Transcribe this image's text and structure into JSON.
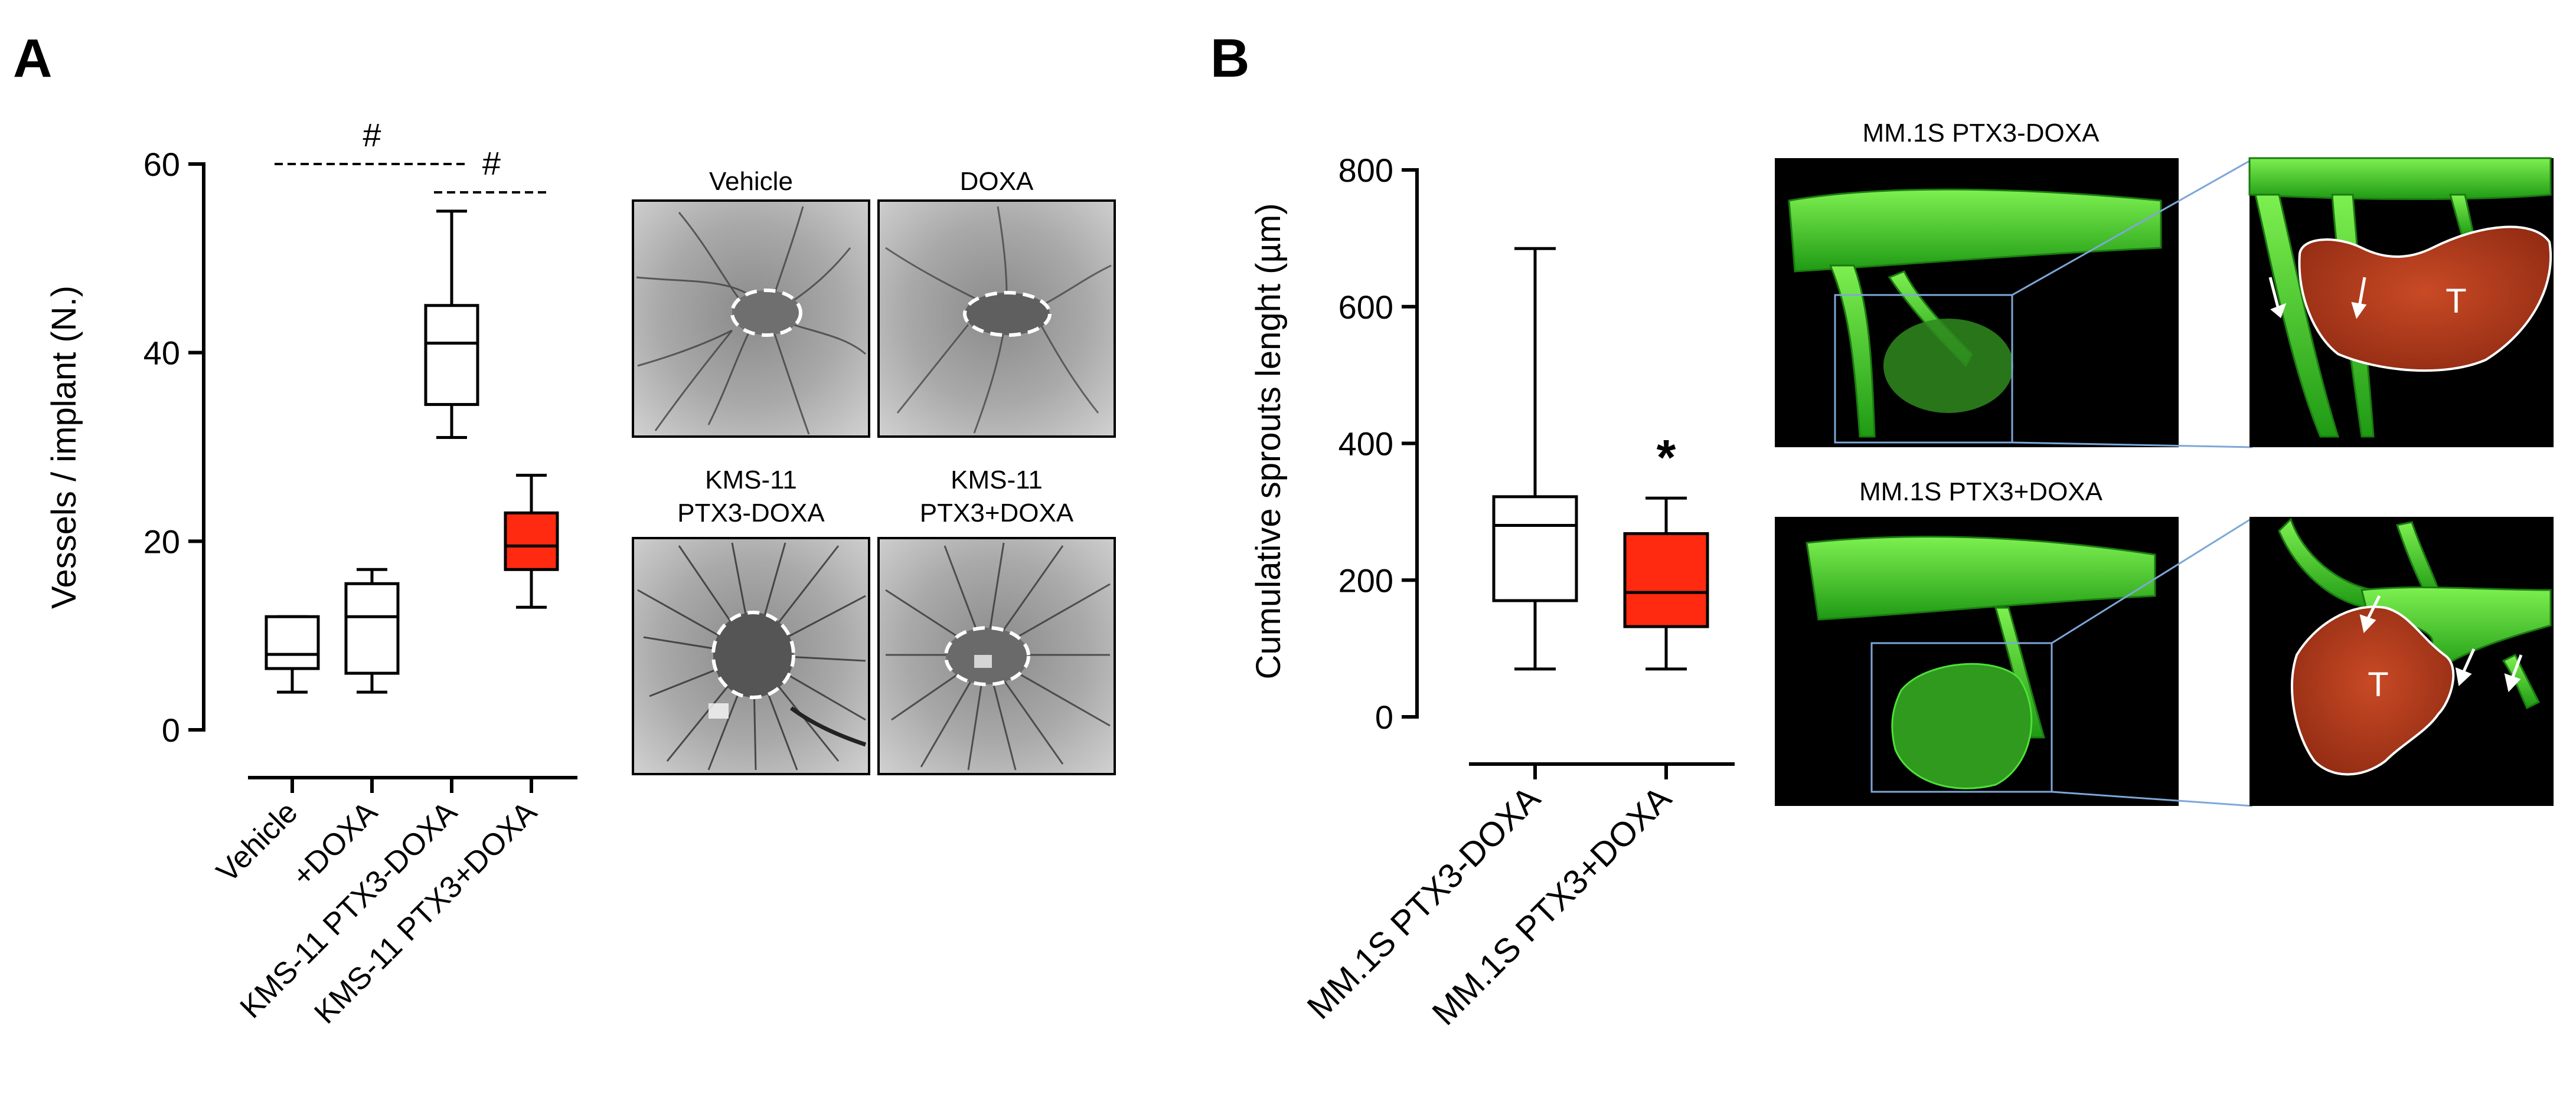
{
  "panels": [
    {
      "letter": "A"
    },
    {
      "letter": "B"
    }
  ],
  "chart_data": [
    {
      "type": "box",
      "panel": "A",
      "ylabel": "Vessels / implant (N.)",
      "ylim": [
        0,
        60
      ],
      "yticks": [
        0,
        20,
        40,
        60
      ],
      "categories": [
        "Vehicle",
        "+DOXA",
        "KMS-11 PTX3-DOXA",
        "KMS-11 PTX3+DOXA"
      ],
      "boxes": [
        {
          "category": "Vehicle",
          "min": 4,
          "q1": 6.5,
          "median": 8,
          "q3": 12,
          "max": 12,
          "fill": "#ffffff"
        },
        {
          "category": "+DOXA",
          "min": 4,
          "q1": 6,
          "median": 12,
          "q3": 15.5,
          "max": 17,
          "fill": "#ffffff"
        },
        {
          "category": "KMS-11 PTX3-DOXA",
          "min": 31,
          "q1": 34.5,
          "median": 41,
          "q3": 45,
          "max": 55,
          "fill": "#ffffff"
        },
        {
          "category": "KMS-11 PTX3+DOXA",
          "min": 13,
          "q1": 17,
          "median": 19.5,
          "q3": 23,
          "max": 27,
          "fill": "#ff2a10"
        }
      ],
      "significance": [
        {
          "from": "Vehicle",
          "to": "KMS-11 PTX3-DOXA",
          "label": "#",
          "y": 60
        },
        {
          "from": "KMS-11 PTX3-DOXA",
          "to": "KMS-11 PTX3+DOXA",
          "label": "#",
          "y": 57
        }
      ]
    },
    {
      "type": "box",
      "panel": "B",
      "ylabel": "Cumulative sprouts lenght (µm)",
      "ylim": [
        0,
        800
      ],
      "yticks": [
        0,
        200,
        400,
        600,
        800
      ],
      "categories": [
        "MM.1S PTX3-DOXA",
        "MM.1S PTX3+DOXA"
      ],
      "boxes": [
        {
          "category": "MM.1S PTX3-DOXA",
          "min": 70,
          "q1": 170,
          "median": 280,
          "q3": 322,
          "max": 685,
          "fill": "#ffffff"
        },
        {
          "category": "MM.1S PTX3+DOXA",
          "min": 70,
          "q1": 132,
          "median": 182,
          "q3": 268,
          "max": 320,
          "fill": "#ff2a10"
        }
      ],
      "significance": [
        {
          "over": "MM.1S PTX3+DOXA",
          "label": "*"
        }
      ]
    }
  ],
  "micrographs": [
    {
      "label_lines": [
        "Vehicle"
      ]
    },
    {
      "label_lines": [
        "DOXA"
      ]
    },
    {
      "label_lines": [
        "KMS-11",
        "PTX3-DOXA"
      ]
    },
    {
      "label_lines": [
        "KMS-11",
        "PTX3+DOXA"
      ]
    }
  ],
  "renders": [
    {
      "title": "MM.1S PTX3-DOXA",
      "inset_label": "T"
    },
    {
      "title": "MM.1S PTX3+DOXA",
      "inset_label": "T"
    }
  ],
  "colors": {
    "red_box": "#ff2a10",
    "vessel_green": "#3fd21e",
    "tumor_red": "#b8341a",
    "zoom_frame": "#7ea7d8"
  }
}
